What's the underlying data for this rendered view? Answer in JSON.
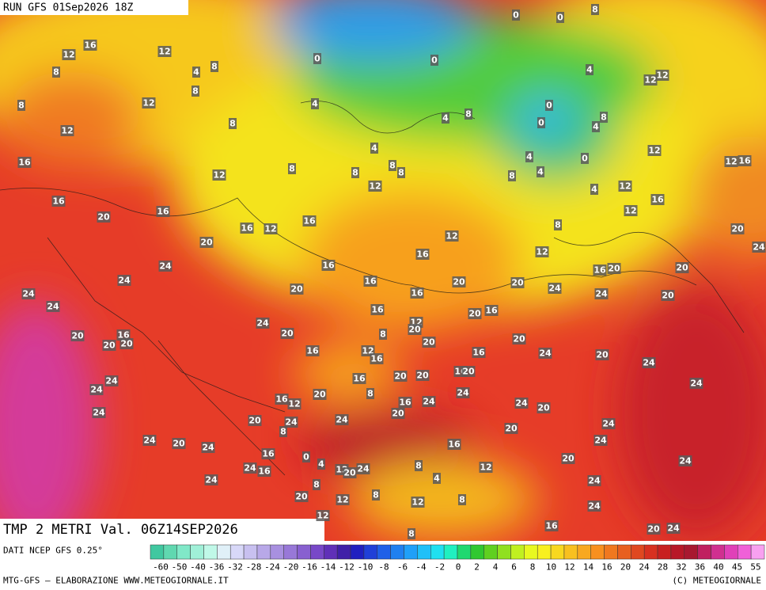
{
  "header": {
    "run": "RUN GFS 01Sep2026 18Z"
  },
  "map": {
    "title": "TMP 2 METRI Val. 06Z14SEP2026",
    "labels": [
      16,
      12,
      12,
      8,
      4,
      8,
      0,
      0,
      0,
      0,
      8,
      4,
      12,
      12,
      12,
      8,
      8,
      4,
      4,
      8,
      0,
      0,
      4,
      8,
      12,
      8,
      4,
      4,
      0,
      12,
      12,
      16,
      16,
      12,
      8,
      8,
      8,
      8,
      8,
      4,
      4,
      12,
      12,
      16,
      20,
      16,
      16,
      16,
      12,
      16,
      12,
      12,
      8,
      20,
      20,
      24,
      12,
      16,
      16,
      24,
      24,
      16,
      20,
      20,
      16,
      20,
      20,
      24,
      20,
      16,
      24,
      24,
      20,
      24,
      16,
      20,
      16,
      24,
      12,
      20,
      20,
      20,
      16,
      20,
      20,
      8,
      20,
      20,
      16,
      12,
      16,
      16,
      24,
      20,
      24,
      20,
      20,
      16,
      20,
      16,
      24,
      24,
      24,
      8,
      20,
      16,
      12,
      24,
      16,
      24,
      24,
      20,
      24,
      20,
      24,
      24,
      20,
      8,
      24,
      20,
      16,
      24,
      20,
      24,
      24,
      16,
      0,
      4,
      20,
      24,
      24,
      16,
      24,
      12,
      20,
      24,
      8,
      12,
      4,
      8,
      24,
      20,
      12,
      8,
      12,
      8,
      24,
      12,
      16,
      8,
      20,
      24
    ]
  },
  "footer": {
    "source": "DATI NCEP GFS 0.25°",
    "scale_labels": [
      -60,
      -50,
      -40,
      -36,
      -32,
      -28,
      -24,
      -20,
      -16,
      -14,
      -12,
      -10,
      -8,
      -6,
      -4,
      -2,
      0,
      2,
      4,
      6,
      8,
      10,
      12,
      14,
      16,
      20,
      24,
      28,
      32,
      36,
      40,
      45,
      55
    ],
    "credits": "MTG-GFS — ELABORAZIONE WWW.METEOGIORNALE.IT",
    "copyright": "(C) METEOGIORNALE"
  }
}
